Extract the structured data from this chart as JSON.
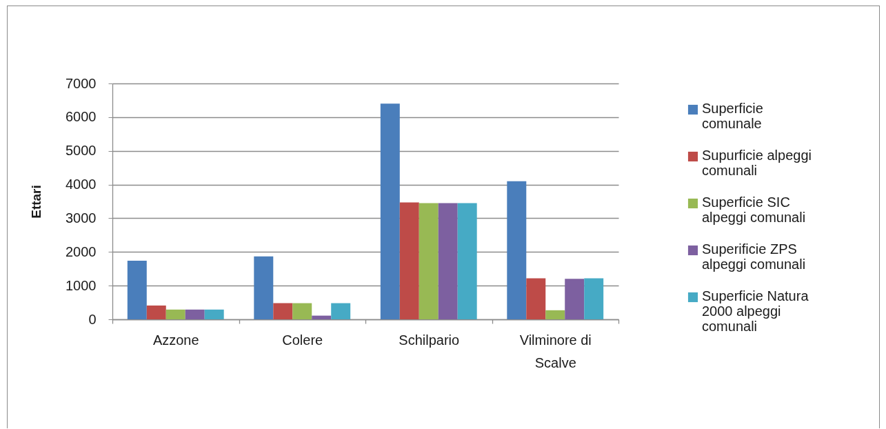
{
  "chart_data": {
    "type": "bar",
    "categories": [
      "Azzone",
      "Colere",
      "Schilpario",
      "Vilminore di Scalve"
    ],
    "series": [
      {
        "name": "Superficie comunale",
        "color": "#4a7ebb",
        "values": [
          1740,
          1870,
          6400,
          4100
        ]
      },
      {
        "name": "Supurficie alpeggi comunali",
        "color": "#be4b48",
        "values": [
          410,
          480,
          3470,
          1220
        ]
      },
      {
        "name": "Superficie SIC alpeggi comunali",
        "color": "#98b954",
        "values": [
          290,
          480,
          3450,
          270
        ]
      },
      {
        "name": "Superificie ZPS alpeggi  comunali",
        "color": "#7d60a0",
        "values": [
          290,
          110,
          3450,
          1200
        ]
      },
      {
        "name": "Superficie Natura 2000 alpeggi comunali",
        "color": "#46aac5",
        "values": [
          290,
          480,
          3450,
          1220
        ]
      }
    ],
    "ylabel": "Ettari",
    "ylim": [
      0,
      7000
    ],
    "yticks": [
      0,
      1000,
      2000,
      3000,
      4000,
      5000,
      6000,
      7000
    ],
    "grid": "y",
    "legend": "right"
  }
}
